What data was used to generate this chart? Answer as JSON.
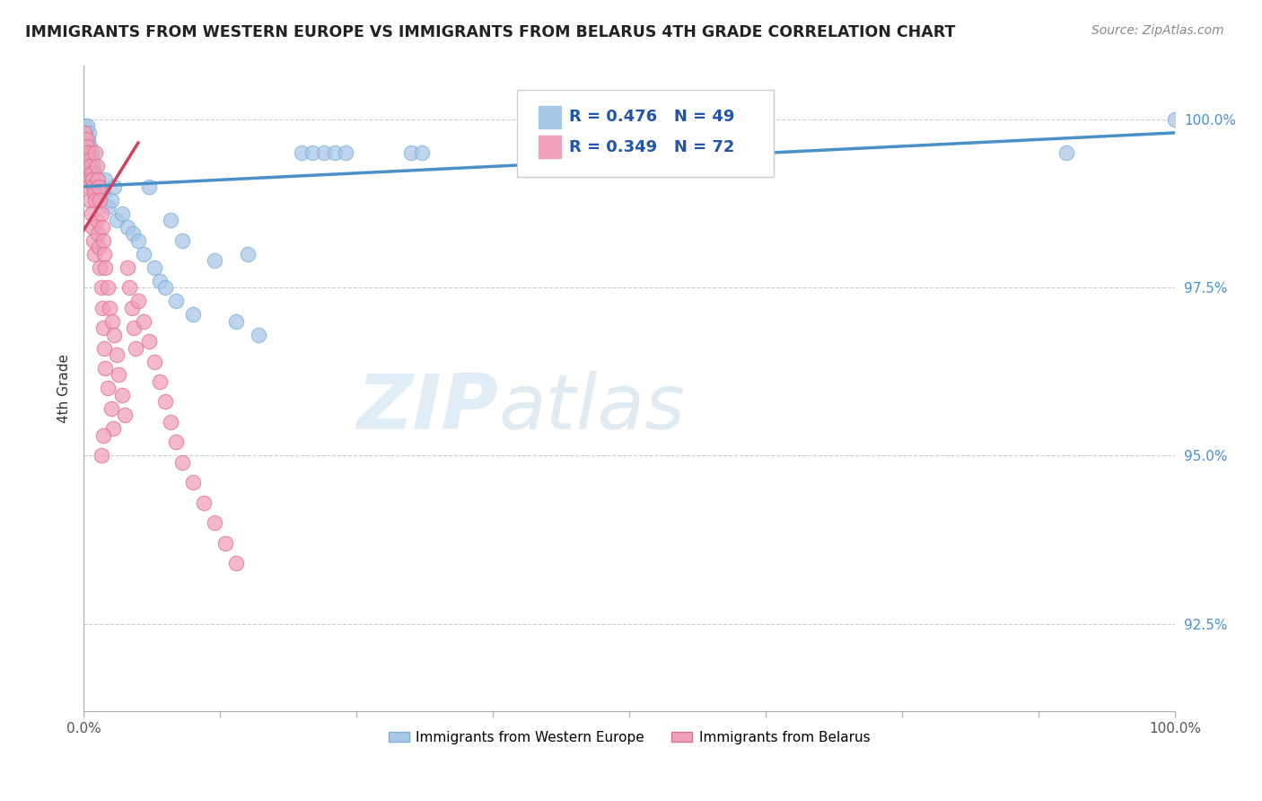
{
  "title": "IMMIGRANTS FROM WESTERN EUROPE VS IMMIGRANTS FROM BELARUS 4TH GRADE CORRELATION CHART",
  "source": "Source: ZipAtlas.com",
  "ylabel": "4th Grade",
  "ylabel_ticks": [
    "92.5%",
    "95.0%",
    "97.5%",
    "100.0%"
  ],
  "ylabel_vals": [
    92.5,
    95.0,
    97.5,
    100.0
  ],
  "legend1_label": "Immigrants from Western Europe",
  "legend2_label": "Immigrants from Belarus",
  "R_blue": 0.476,
  "N_blue": 49,
  "R_pink": 0.349,
  "N_pink": 72,
  "blue_color": "#a8c8e8",
  "pink_color": "#f0a0b8",
  "blue_edge_color": "#7bafd4",
  "pink_edge_color": "#e07090",
  "blue_line_color": "#4a90c8",
  "pink_line_color": "#d04060",
  "watermark_zip": "ZIP",
  "watermark_atlas": "atlas",
  "xmin": 0.0,
  "xmax": 1.0,
  "ymin": 91.2,
  "ymax": 100.8,
  "blue_scatter": [
    [
      0.001,
      99.9
    ],
    [
      0.001,
      99.7
    ],
    [
      0.002,
      99.8
    ],
    [
      0.002,
      99.5
    ],
    [
      0.003,
      99.9
    ],
    [
      0.003,
      99.6
    ],
    [
      0.004,
      99.7
    ],
    [
      0.004,
      99.4
    ],
    [
      0.005,
      99.8
    ],
    [
      0.005,
      99.3
    ],
    [
      0.006,
      99.6
    ],
    [
      0.007,
      99.5
    ],
    [
      0.008,
      99.4
    ],
    [
      0.009,
      99.3
    ],
    [
      0.01,
      99.2
    ],
    [
      0.012,
      99.1
    ],
    [
      0.015,
      99.0
    ],
    [
      0.018,
      98.9
    ],
    [
      0.02,
      99.1
    ],
    [
      0.022,
      98.7
    ],
    [
      0.025,
      98.8
    ],
    [
      0.028,
      99.0
    ],
    [
      0.03,
      98.5
    ],
    [
      0.035,
      98.6
    ],
    [
      0.04,
      98.4
    ],
    [
      0.045,
      98.3
    ],
    [
      0.05,
      98.2
    ],
    [
      0.055,
      98.0
    ],
    [
      0.06,
      99.0
    ],
    [
      0.065,
      97.8
    ],
    [
      0.07,
      97.6
    ],
    [
      0.075,
      97.5
    ],
    [
      0.08,
      98.5
    ],
    [
      0.085,
      97.3
    ],
    [
      0.09,
      98.2
    ],
    [
      0.1,
      97.1
    ],
    [
      0.12,
      97.9
    ],
    [
      0.14,
      97.0
    ],
    [
      0.15,
      98.0
    ],
    [
      0.16,
      96.8
    ],
    [
      0.2,
      99.5
    ],
    [
      0.21,
      99.5
    ],
    [
      0.22,
      99.5
    ],
    [
      0.23,
      99.5
    ],
    [
      0.24,
      99.5
    ],
    [
      0.3,
      99.5
    ],
    [
      0.31,
      99.5
    ],
    [
      0.9,
      99.5
    ],
    [
      1.0,
      100.0
    ]
  ],
  "pink_scatter": [
    [
      0.001,
      99.8
    ],
    [
      0.001,
      99.5
    ],
    [
      0.002,
      99.7
    ],
    [
      0.002,
      99.3
    ],
    [
      0.003,
      99.6
    ],
    [
      0.003,
      99.2
    ],
    [
      0.004,
      99.5
    ],
    [
      0.004,
      99.1
    ],
    [
      0.005,
      99.4
    ],
    [
      0.005,
      99.0
    ],
    [
      0.006,
      99.3
    ],
    [
      0.006,
      98.8
    ],
    [
      0.007,
      99.2
    ],
    [
      0.007,
      98.6
    ],
    [
      0.008,
      99.1
    ],
    [
      0.008,
      98.4
    ],
    [
      0.009,
      99.0
    ],
    [
      0.009,
      98.2
    ],
    [
      0.01,
      98.9
    ],
    [
      0.01,
      98.0
    ],
    [
      0.011,
      99.5
    ],
    [
      0.011,
      98.8
    ],
    [
      0.012,
      99.3
    ],
    [
      0.012,
      98.5
    ],
    [
      0.013,
      99.1
    ],
    [
      0.013,
      98.3
    ],
    [
      0.014,
      99.0
    ],
    [
      0.014,
      98.1
    ],
    [
      0.015,
      98.8
    ],
    [
      0.015,
      97.8
    ],
    [
      0.016,
      98.6
    ],
    [
      0.016,
      97.5
    ],
    [
      0.017,
      98.4
    ],
    [
      0.017,
      97.2
    ],
    [
      0.018,
      98.2
    ],
    [
      0.018,
      96.9
    ],
    [
      0.019,
      98.0
    ],
    [
      0.019,
      96.6
    ],
    [
      0.02,
      97.8
    ],
    [
      0.02,
      96.3
    ],
    [
      0.022,
      97.5
    ],
    [
      0.022,
      96.0
    ],
    [
      0.024,
      97.2
    ],
    [
      0.025,
      95.7
    ],
    [
      0.026,
      97.0
    ],
    [
      0.027,
      95.4
    ],
    [
      0.028,
      96.8
    ],
    [
      0.03,
      96.5
    ],
    [
      0.032,
      96.2
    ],
    [
      0.035,
      95.9
    ],
    [
      0.038,
      95.6
    ],
    [
      0.04,
      97.8
    ],
    [
      0.042,
      97.5
    ],
    [
      0.044,
      97.2
    ],
    [
      0.046,
      96.9
    ],
    [
      0.048,
      96.6
    ],
    [
      0.05,
      97.3
    ],
    [
      0.055,
      97.0
    ],
    [
      0.06,
      96.7
    ],
    [
      0.065,
      96.4
    ],
    [
      0.07,
      96.1
    ],
    [
      0.075,
      95.8
    ],
    [
      0.08,
      95.5
    ],
    [
      0.085,
      95.2
    ],
    [
      0.09,
      94.9
    ],
    [
      0.1,
      94.6
    ],
    [
      0.11,
      94.3
    ],
    [
      0.12,
      94.0
    ],
    [
      0.13,
      93.7
    ],
    [
      0.14,
      93.4
    ],
    [
      0.016,
      95.0
    ],
    [
      0.018,
      95.3
    ]
  ]
}
